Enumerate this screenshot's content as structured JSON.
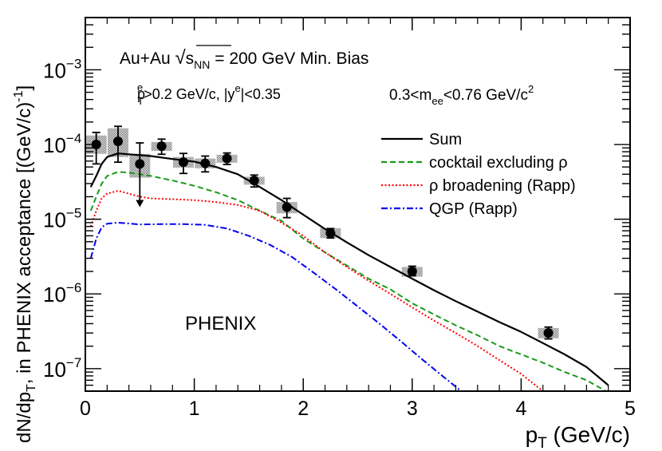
{
  "chart_data": {
    "type": "scatter",
    "x_axis": {
      "label_main": "p",
      "label_sub": "T",
      "label_unit": " (GeV/c)",
      "range": [
        0,
        5
      ],
      "ticks": [
        0,
        1,
        2,
        3,
        4,
        5
      ],
      "tick_labels": [
        "0",
        "1",
        "2",
        "3",
        "4",
        "5"
      ]
    },
    "y_axis": {
      "scale": "log",
      "range": [
        5e-08,
        0.005
      ],
      "label_parts": [
        "dN/dp",
        "T",
        ", in PHENIX acceptance [(GeV/c)",
        "-1",
        "]"
      ],
      "ticks": [
        1e-07,
        1e-06,
        1e-05,
        0.0001,
        0.001
      ],
      "tick_labels": [
        {
          "base": "10",
          "exp": "−7"
        },
        {
          "base": "10",
          "exp": "−6"
        },
        {
          "base": "10",
          "exp": "−5"
        },
        {
          "base": "10",
          "exp": "−4"
        },
        {
          "base": "10",
          "exp": "−3"
        }
      ]
    },
    "annotations": {
      "line1_a": "Au+Au ",
      "line1_sqrt": "√",
      "line1_s": "s",
      "line1_nn": "NN",
      "line1_b": " = 200 GeV Min. Bias",
      "line2_p": "p",
      "line2_T": "T",
      "line2_e": "e",
      "line2_a": ">0.2 GeV/c, |y",
      "line2_e2": "e",
      "line2_b": "|<0.35",
      "line3_a": "0.3<m",
      "line3_ee": "ee",
      "line3_b": "<0.76 GeV/c",
      "line3_2": "2",
      "experiment": "PHENIX"
    },
    "legend": {
      "placement": "top-right",
      "entries": [
        {
          "label": "Sum",
          "color": "#000000",
          "dash": "solid"
        },
        {
          "label": "cocktail excluding ρ",
          "color": "#1a9a1a",
          "dash": "dashed"
        },
        {
          "label": "ρ broadening (Rapp)",
          "color": "#ff0000",
          "dash": "dotted"
        },
        {
          "label": "QGP (Rapp)",
          "color": "#0000ee",
          "dash": "dashdot"
        }
      ]
    },
    "data_points": [
      {
        "x": 0.1,
        "y": 0.0001,
        "y_low": 5.5e-05,
        "y_high": 0.000145,
        "syst_low": 7.5e-05,
        "syst_high": 0.000132
      },
      {
        "x": 0.3,
        "y": 0.00011,
        "y_low": 5.8e-05,
        "y_high": 0.000175,
        "syst_low": 6.8e-05,
        "syst_high": 0.000165
      },
      {
        "x": 0.5,
        "y": 5.5e-05,
        "upper_limit": true,
        "y_high": 0.000105,
        "arrow_to": 1.45e-05,
        "syst_low": 3.6e-05,
        "syst_high": 7.5e-05
      },
      {
        "x": 0.7,
        "y": 9.5e-05,
        "y_low": 7.4e-05,
        "y_high": 0.000118,
        "syst_low": 8.2e-05,
        "syst_high": 0.000108
      },
      {
        "x": 0.9,
        "y": 5.8e-05,
        "y_low": 4.1e-05,
        "y_high": 7.6e-05,
        "syst_low": 4.9e-05,
        "syst_high": 6.8e-05
      },
      {
        "x": 1.1,
        "y": 5.6e-05,
        "y_low": 4.3e-05,
        "y_high": 7e-05,
        "syst_low": 4.8e-05,
        "syst_high": 6.5e-05
      },
      {
        "x": 1.3,
        "y": 6.5e-05,
        "y_low": 5.4e-05,
        "y_high": 7.7e-05,
        "syst_low": 5.7e-05,
        "syst_high": 7.3e-05
      },
      {
        "x": 1.55,
        "y": 3.3e-05,
        "y_low": 2.7e-05,
        "y_high": 3.9e-05,
        "syst_low": 2.9e-05,
        "syst_high": 3.7e-05
      },
      {
        "x": 1.85,
        "y": 1.45e-05,
        "y_low": 1.05e-05,
        "y_high": 1.9e-05,
        "syst_low": 1.2e-05,
        "syst_high": 1.7e-05
      },
      {
        "x": 2.25,
        "y": 6.5e-06,
        "y_low": 5.6e-06,
        "y_high": 7.5e-06,
        "syst_low": 5.6e-06,
        "syst_high": 7.6e-06
      },
      {
        "x": 3.0,
        "y": 2e-06,
        "y_low": 1.75e-06,
        "y_high": 2.35e-06,
        "syst_low": 1.7e-06,
        "syst_high": 2.3e-06
      },
      {
        "x": 4.25,
        "y": 3e-07,
        "y_low": 2.5e-07,
        "y_high": 3.6e-07,
        "syst_low": 2.55e-07,
        "syst_high": 3.5e-07
      }
    ],
    "series": [
      {
        "name": "Sum",
        "x": [
          0.05,
          0.1,
          0.15,
          0.2,
          0.3,
          0.4,
          0.5,
          0.6,
          0.8,
          1.0,
          1.2,
          1.4,
          1.6,
          1.8,
          2.0,
          2.2,
          2.4,
          2.6,
          2.8,
          3.0,
          3.2,
          3.4,
          3.6,
          3.8,
          4.0,
          4.2,
          4.4,
          4.6,
          4.8
        ],
        "y": [
          2.7e-05,
          3.8e-05,
          5.5e-05,
          6.8e-05,
          7.6e-05,
          7.4e-05,
          7.2e-05,
          7e-05,
          6.4e-05,
          5.9e-05,
          5e-05,
          4e-05,
          2.7e-05,
          1.8e-05,
          1.15e-05,
          7.4e-06,
          4.9e-06,
          3.3e-06,
          2.3e-06,
          1.6e-06,
          1.12e-06,
          8e-07,
          5.8e-07,
          4.2e-07,
          3.1e-07,
          2.2e-07,
          1.55e-07,
          1.05e-07,
          6e-08
        ]
      },
      {
        "name": "cocktail excluding ρ",
        "x": [
          0.05,
          0.1,
          0.15,
          0.2,
          0.3,
          0.4,
          0.5,
          0.6,
          0.8,
          1.0,
          1.2,
          1.4,
          1.6,
          1.8,
          2.0,
          2.2,
          2.4,
          2.6,
          2.8,
          3.0,
          3.2,
          3.4,
          3.6,
          3.8,
          4.0,
          4.2,
          4.4,
          4.6,
          4.8
        ],
        "y": [
          1.3e-05,
          2e-05,
          3e-05,
          3.8e-05,
          4.3e-05,
          4.2e-05,
          4e-05,
          3.8e-05,
          3.3e-05,
          2.8e-05,
          2.3e-05,
          1.8e-05,
          1.3e-05,
          9.5e-06,
          5.5e-06,
          3.6e-06,
          2.4e-06,
          1.6e-06,
          1.15e-06,
          7.5e-07,
          5.3e-07,
          3.8e-07,
          2.8e-07,
          2e-07,
          1.55e-07,
          1.2e-07,
          9e-08,
          7e-08,
          4.8e-08
        ]
      },
      {
        "name": "ρ broadening (Rapp)",
        "x": [
          0.05,
          0.1,
          0.15,
          0.2,
          0.3,
          0.4,
          0.5,
          0.6,
          0.8,
          1.0,
          1.2,
          1.4,
          1.6,
          1.8,
          2.0,
          2.2,
          2.4,
          2.6,
          2.8,
          3.0,
          3.2,
          3.4,
          3.6,
          3.8,
          4.0,
          4.1,
          4.2
        ],
        "y": [
          8e-06,
          1.3e-05,
          1.9e-05,
          2.2e-05,
          2.4e-05,
          2.2e-05,
          2e-05,
          1.9e-05,
          1.85e-05,
          1.8e-05,
          1.7e-05,
          1.55e-05,
          1.3e-05,
          9e-06,
          6e-06,
          3.6e-06,
          2.3e-06,
          1.5e-06,
          1e-06,
          6.6e-07,
          4.4e-07,
          3e-07,
          2e-07,
          1.3e-07,
          8.5e-08,
          6.5e-08,
          5e-08
        ]
      },
      {
        "name": "QGP (Rapp)",
        "x": [
          0.05,
          0.1,
          0.15,
          0.2,
          0.3,
          0.5,
          0.7,
          0.9,
          1.1,
          1.3,
          1.5,
          1.7,
          1.9,
          2.1,
          2.3,
          2.5,
          2.7,
          2.9,
          3.1,
          3.3,
          3.45
        ],
        "y": [
          3e-06,
          5.5e-06,
          7.8e-06,
          8.7e-06,
          9e-06,
          8.5e-06,
          8.6e-06,
          8.6e-06,
          8.4e-06,
          7.5e-06,
          6e-06,
          4.5e-06,
          3.1e-06,
          1.9e-06,
          1.15e-06,
          6.8e-07,
          4e-07,
          2.3e-07,
          1.3e-07,
          7.5e-08,
          5e-08
        ]
      }
    ]
  }
}
